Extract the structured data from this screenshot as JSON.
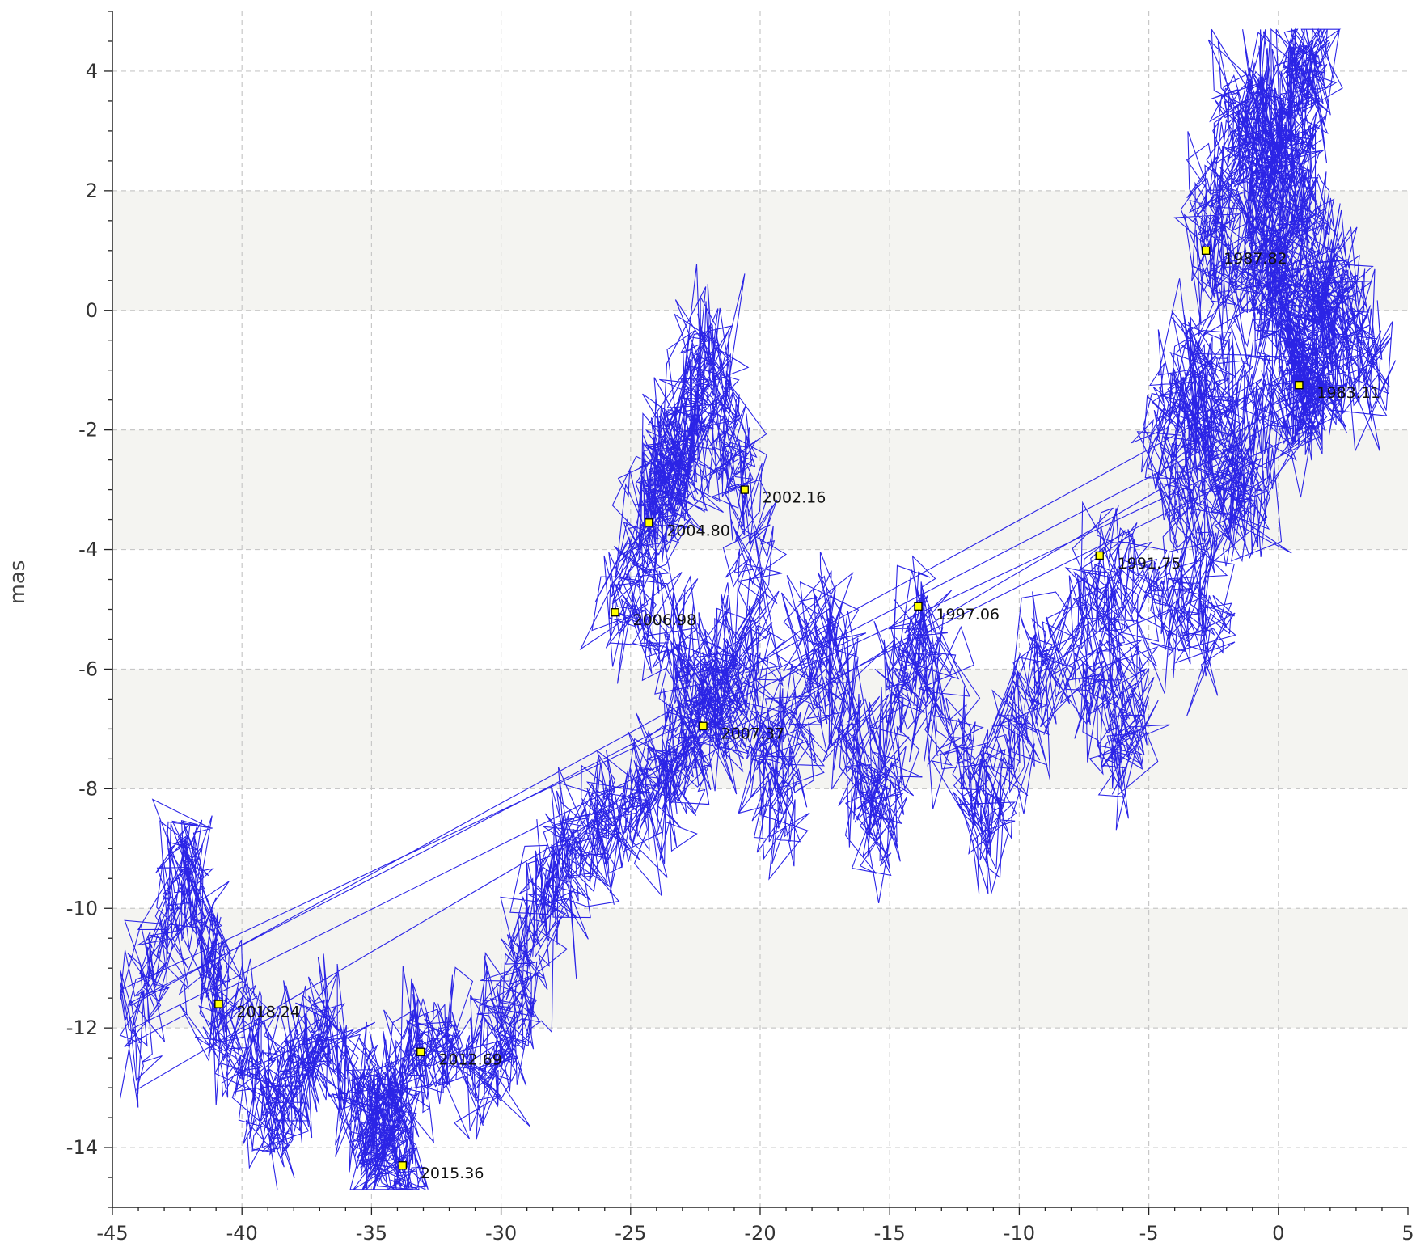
{
  "chart_data": {
    "type": "line",
    "title": "",
    "xlabel": "",
    "ylabel": "mas",
    "xlim": [
      -45,
      5
    ],
    "ylim": [
      -15,
      5
    ],
    "grid": true,
    "alternating_bands": true,
    "x_ticks": [
      -45,
      -40,
      -35,
      -30,
      -25,
      -20,
      -15,
      -10,
      -5,
      0,
      5
    ],
    "y_ticks": [
      -14,
      -12,
      -10,
      -8,
      -6,
      -4,
      -2,
      0,
      2,
      4
    ],
    "colors": {
      "line": "#2b24e6",
      "marker_fill": "#ffff00",
      "marker_edge": "#000000",
      "band": "#f4f4f1",
      "grid": "#c8c8c8"
    },
    "epochs": [
      {
        "label": "1983.11",
        "x": 0.8,
        "y": -1.25
      },
      {
        "label": "1987.82",
        "x": -2.8,
        "y": 1.0
      },
      {
        "label": "1991.75",
        "x": -6.9,
        "y": -4.1
      },
      {
        "label": "1997.06",
        "x": -13.9,
        "y": -4.95
      },
      {
        "label": "2002.16",
        "x": -20.6,
        "y": -3.0
      },
      {
        "label": "2004.80",
        "x": -24.3,
        "y": -3.55
      },
      {
        "label": "2006.98",
        "x": -25.6,
        "y": -5.05
      },
      {
        "label": "2007.37",
        "x": -22.2,
        "y": -6.95
      },
      {
        "label": "2012.69",
        "x": -33.1,
        "y": -12.4
      },
      {
        "label": "2015.36",
        "x": -33.8,
        "y": -14.3
      },
      {
        "label": "2018.24",
        "x": -40.9,
        "y": -11.6
      }
    ],
    "trajectory_path": [
      [
        1.8,
        -1.6
      ],
      [
        0.8,
        -1.25
      ],
      [
        2.5,
        0.3
      ],
      [
        -0.5,
        3.5
      ],
      [
        1.5,
        4.2
      ],
      [
        -1.5,
        1.0
      ],
      [
        3.9,
        -1.0
      ],
      [
        -0.5,
        2.8
      ],
      [
        1.0,
        -0.5
      ],
      [
        -2.8,
        1.0
      ],
      [
        -1.2,
        3.8
      ],
      [
        0.5,
        -2.0
      ],
      [
        -3.5,
        -1.0
      ],
      [
        -1.0,
        -3.5
      ],
      [
        -4.5,
        -1.5
      ],
      [
        -2.5,
        -5.5
      ],
      [
        -6.9,
        -4.1
      ],
      [
        -5.5,
        -7.5
      ],
      [
        -9.0,
        -5.5
      ],
      [
        -11.5,
        -8.8
      ],
      [
        -13.9,
        -4.95
      ],
      [
        -15.5,
        -9.0
      ],
      [
        -17.5,
        -5.0
      ],
      [
        -19.5,
        -8.5
      ],
      [
        -20.6,
        -3.0
      ],
      [
        -22.0,
        -0.5
      ],
      [
        -24.3,
        -3.55
      ],
      [
        -22.5,
        -2.0
      ],
      [
        -25.6,
        -5.05
      ],
      [
        -21.0,
        -6.0
      ],
      [
        -22.2,
        -6.95
      ],
      [
        -24.0,
        -8.0
      ],
      [
        -26.5,
        -8.5
      ],
      [
        -28.5,
        -10.0
      ],
      [
        -30.0,
        -12.5
      ],
      [
        -33.1,
        -12.4
      ],
      [
        -35.0,
        -13.5
      ],
      [
        -33.8,
        -14.3
      ],
      [
        -37.0,
        -12.0
      ],
      [
        -38.5,
        -13.5
      ],
      [
        -40.9,
        -11.6
      ],
      [
        -42.0,
        -9.0
      ],
      [
        -44.5,
        -12.5
      ]
    ]
  }
}
